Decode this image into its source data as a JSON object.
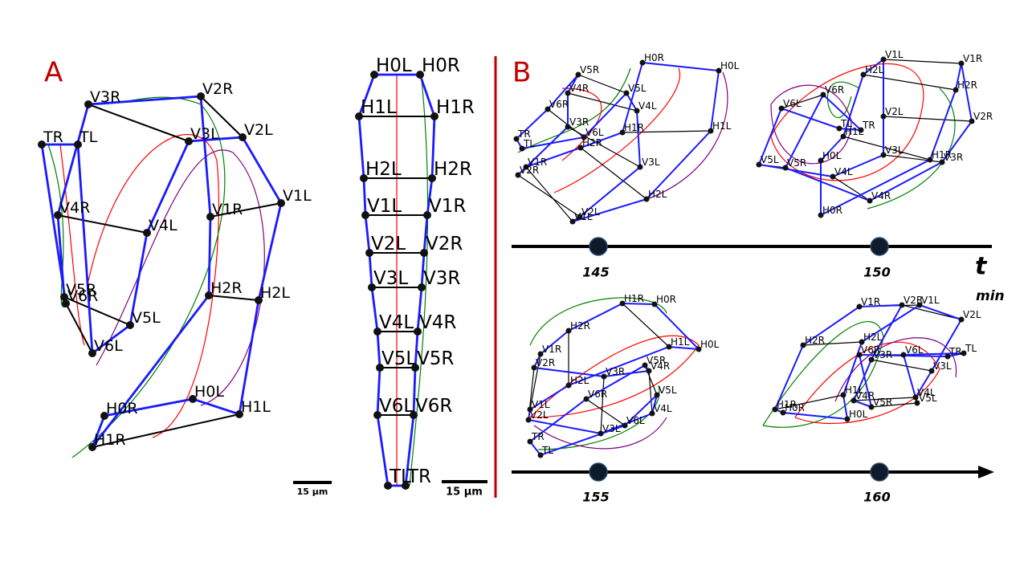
{
  "panel_a": {
    "label": "A",
    "shapes": [
      {
        "nodes": [
          "H0L",
          "H0R",
          "H1L",
          "H1R",
          "H2L",
          "H2R",
          "V1L",
          "V1R",
          "V2L",
          "V2R",
          "V3L",
          "V3R",
          "V4L",
          "V4R",
          "V5L",
          "V5R",
          "V6L",
          "V6R",
          "TL",
          "TR"
        ]
      },
      {
        "nodes": [
          "H0L",
          "H0R",
          "H1L",
          "H1R",
          "H2L",
          "H2R",
          "V1L",
          "V1R",
          "V2L",
          "V2R",
          "V3L",
          "V3R",
          "V4L",
          "V4R",
          "V5L",
          "V5R",
          "V6L",
          "V6R",
          "TL",
          "TR"
        ]
      }
    ],
    "scale_bars": [
      "15 µm",
      "15 µm"
    ]
  },
  "panel_b": {
    "label": "B",
    "axis_label": "t",
    "unit": "min",
    "frames": [
      {
        "time": 145,
        "nodes": [
          "H0L",
          "H0R",
          "H1L",
          "H1R",
          "H2L",
          "H2R",
          "V1L",
          "V1R",
          "V2L",
          "V2R",
          "V3L",
          "V3R",
          "V4L",
          "V4R",
          "V5L",
          "V5R",
          "V6L",
          "V6R",
          "TL",
          "TR"
        ]
      },
      {
        "time": 150,
        "nodes": [
          "H0L",
          "H0R",
          "H1L",
          "H1R",
          "H2L",
          "H2R",
          "V1L",
          "V1R",
          "V2L",
          "V2R",
          "V3L",
          "V3R",
          "V4L",
          "V4R",
          "V5L",
          "V5R",
          "V6L",
          "V6R",
          "TL",
          "TR"
        ]
      },
      {
        "time": 155,
        "nodes": [
          "H0L",
          "H0R",
          "H1L",
          "H1R",
          "H2L",
          "H2R",
          "V1L",
          "V1R",
          "V2L",
          "V2R",
          "V3L",
          "V3R",
          "V4L",
          "V4R",
          "V5L",
          "V5R",
          "V6L",
          "V6R",
          "TL",
          "TR"
        ]
      },
      {
        "time": 160,
        "nodes": [
          "H0L",
          "H0R",
          "H1L",
          "H1R",
          "H2L",
          "H2R",
          "V1L",
          "V1R",
          "V2L",
          "V2R",
          "V3L",
          "V3R",
          "V4L",
          "V4R",
          "V5L",
          "V5R",
          "V6L",
          "V6R",
          "TL",
          "TR"
        ]
      }
    ]
  }
}
